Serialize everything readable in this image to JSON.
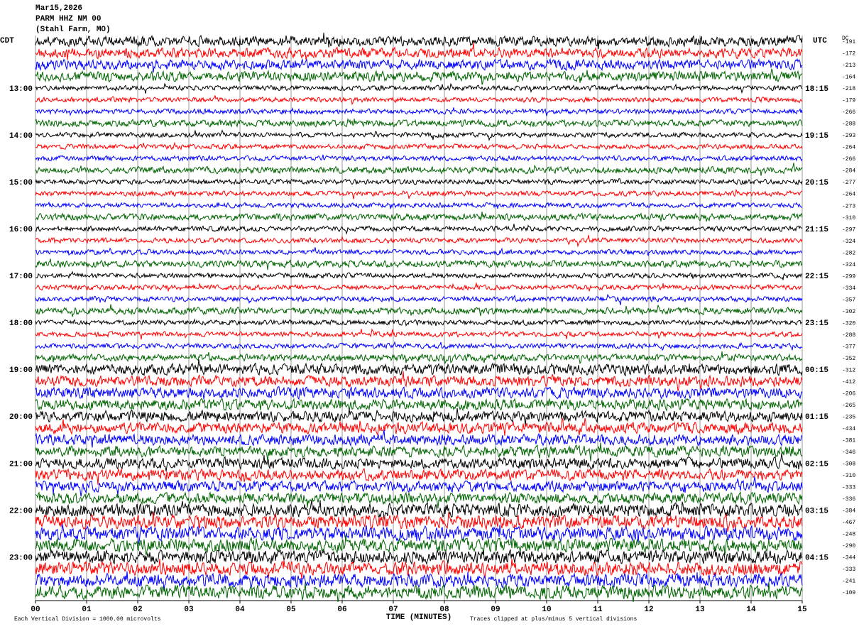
{
  "chart_data": {
    "type": "helicorder",
    "date": "Mar15,2026",
    "station": "PARM HHZ NM 00",
    "location": "(Stahl Farm, MO)",
    "left_axis_title": "CDT",
    "right_axis_title": "UTC",
    "dc_title": "DC",
    "categories": [
      null,
      null,
      null,
      null,
      "13:00",
      null,
      null,
      null,
      "14:00",
      null,
      null,
      null,
      "15:00",
      null,
      null,
      null,
      "16:00",
      null,
      null,
      null,
      "17:00",
      null,
      null,
      null,
      "18:00",
      null,
      null,
      null,
      "19:00",
      null,
      null,
      null,
      "20:00",
      null,
      null,
      null,
      "21:00",
      null,
      null,
      null,
      "22:00",
      null,
      null,
      null,
      "23:00",
      null,
      null,
      null
    ],
    "utc_labels": [
      null,
      null,
      null,
      null,
      "18:15",
      null,
      null,
      null,
      "19:15",
      null,
      null,
      null,
      "20:15",
      null,
      null,
      null,
      "21:15",
      null,
      null,
      null,
      "22:15",
      null,
      null,
      null,
      "23:15",
      null,
      null,
      null,
      "00:15",
      null,
      null,
      null,
      "01:15",
      null,
      null,
      null,
      "02:15",
      null,
      null,
      null,
      "03:15",
      null,
      null,
      null,
      "04:15",
      null,
      null,
      null
    ],
    "dc_offsets": [
      -191,
      -172,
      -213,
      -164,
      -218,
      -179,
      -266,
      -288,
      -293,
      -264,
      -266,
      -284,
      -277,
      -264,
      -273,
      -310,
      -297,
      -324,
      -282,
      -324,
      -299,
      -334,
      -357,
      -302,
      -320,
      -288,
      -377,
      -352,
      -312,
      -412,
      -206,
      -265,
      -235,
      -434,
      -381,
      -346,
      -308,
      -310,
      -333,
      -336,
      -384,
      -467,
      -248,
      -290,
      -344,
      -333,
      -241,
      -109
    ],
    "colors": [
      "#000000",
      "#ff0000",
      "#0000ff",
      "#006400"
    ],
    "xlabel": "TIME (MINUTES)",
    "xlim": [
      0,
      15
    ],
    "xticks": [
      {
        "value": 0,
        "label": "00"
      },
      {
        "value": 1,
        "label": "01"
      },
      {
        "value": 2,
        "label": "02"
      },
      {
        "value": 3,
        "label": "03"
      },
      {
        "value": 4,
        "label": "04"
      },
      {
        "value": 5,
        "label": "05"
      },
      {
        "value": 6,
        "label": "06"
      },
      {
        "value": 7,
        "label": "07"
      },
      {
        "value": 8,
        "label": "08"
      },
      {
        "value": 9,
        "label": "09"
      },
      {
        "value": 10,
        "label": "10"
      },
      {
        "value": 11,
        "label": "11"
      },
      {
        "value": 12,
        "label": "12"
      },
      {
        "value": 13,
        "label": "13"
      },
      {
        "value": 14,
        "label": "14"
      },
      {
        "value": 15,
        "label": "15"
      }
    ],
    "grid": true,
    "scale_note": "Each Vertical Division = 1000.00 microvolts",
    "clip_note": "Traces clipped at plus/minus 5 vertical divisions"
  }
}
